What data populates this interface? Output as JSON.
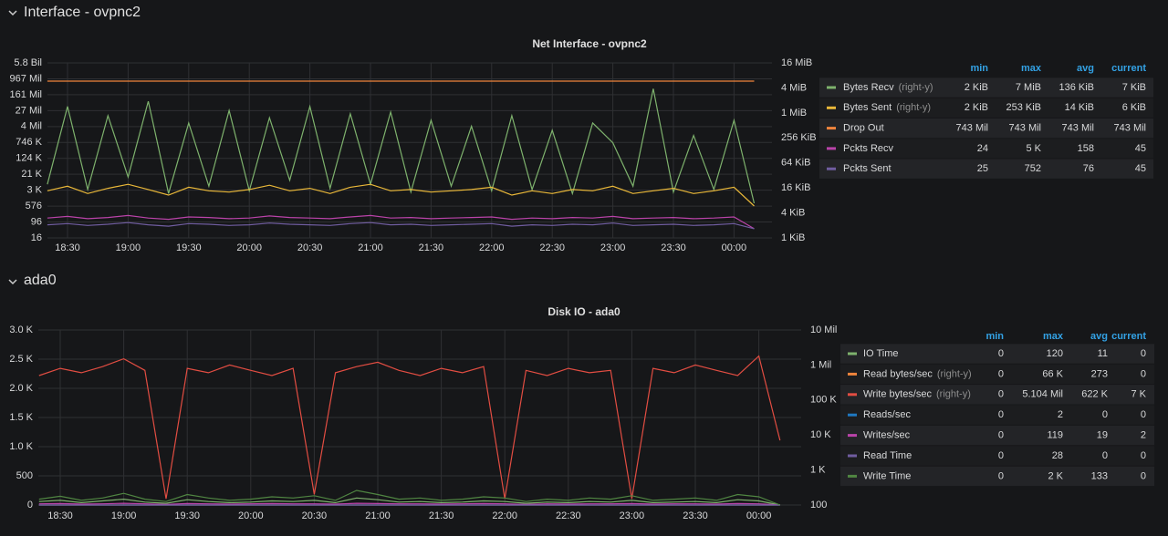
{
  "sections": [
    "Interface - ovpnc2",
    "ada0"
  ],
  "chart_data": [
    {
      "type": "line",
      "title": "Net Interface - ovpnc2",
      "grid": true,
      "legend": "right",
      "ylog": true,
      "y2log": true,
      "y2_note": "(right-y)",
      "stat_headers": [
        "min",
        "max",
        "avg",
        "current"
      ],
      "x": [
        null,
        "18:30",
        null,
        null,
        "19:00",
        null,
        null,
        "19:30",
        null,
        null,
        "20:00",
        null,
        null,
        "20:30",
        null,
        null,
        "21:00",
        null,
        null,
        "21:30",
        null,
        null,
        "22:00",
        null,
        null,
        "22:30",
        null,
        null,
        "23:00",
        null,
        null,
        "23:30",
        null,
        null,
        "00:00",
        null
      ],
      "ylim": [
        16,
        5804752896
      ],
      "yticks": [
        16,
        96,
        576,
        {
          "value": 3456,
          "label": "3 K"
        },
        {
          "value": 20736,
          "label": "21 K"
        },
        {
          "value": 124416,
          "label": "124 K"
        },
        {
          "value": 746496,
          "label": "746 K"
        },
        {
          "value": 4478976,
          "label": "4 Mil"
        },
        {
          "value": 26873856,
          "label": "27 Mil"
        },
        {
          "value": 161243136,
          "label": "161 Mil"
        },
        {
          "value": 967458816,
          "label": "967 Mil"
        },
        {
          "value": 5804752896,
          "label": "5.8 Bil"
        }
      ],
      "y2lim": [
        1024,
        16777216
      ],
      "y2ticks": [
        {
          "value": 1024,
          "label": "1 KiB"
        },
        {
          "value": 4096,
          "label": "4 KiB"
        },
        {
          "value": 16384,
          "label": "16 KiB"
        },
        {
          "value": 65536,
          "label": "64 KiB"
        },
        {
          "value": 262144,
          "label": "256 KiB"
        },
        {
          "value": 1048576,
          "label": "1 MiB"
        },
        {
          "value": 4194304,
          "label": "4 MiB"
        },
        {
          "value": 16777216,
          "label": "16 MiB"
        }
      ],
      "series": [
        {
          "name": "Bytes Recv",
          "color": "#7eb26d",
          "axis": "y2",
          "stats": [
            "2 KiB",
            "7 MiB",
            "136 KiB",
            "7 KiB"
          ],
          "values": [
            20000,
            1500000,
            15000,
            900000,
            30000,
            2000000,
            12000,
            600000,
            18000,
            1200000,
            14000,
            800000,
            25000,
            1500000,
            16000,
            1000000,
            20000,
            1100000,
            13000,
            700000,
            18000,
            500000,
            14000,
            900000,
            15000,
            400000,
            12000,
            600000,
            200000,
            18000,
            4000000,
            13000,
            300000,
            15000,
            700000,
            7000
          ]
        },
        {
          "name": "Bytes Sent",
          "color": "#eab839",
          "axis": "y2",
          "stats": [
            "2 KiB",
            "253 KiB",
            "14 KiB",
            "6 KiB"
          ],
          "values": [
            14000,
            18000,
            12000,
            16000,
            20000,
            15000,
            11000,
            17000,
            14000,
            13000,
            15000,
            19000,
            14000,
            16000,
            12000,
            17000,
            20000,
            14000,
            15000,
            13000,
            14000,
            15000,
            17000,
            11000,
            14000,
            12000,
            15000,
            14000,
            18000,
            12000,
            14000,
            16000,
            12000,
            14000,
            17000,
            6000
          ]
        },
        {
          "name": "Drop Out",
          "color": "#ef843c",
          "stats": [
            "743 Mil",
            "743 Mil",
            "743 Mil",
            "743 Mil"
          ],
          "values": [
            743000000,
            743000000,
            743000000,
            743000000,
            743000000,
            743000000,
            743000000,
            743000000,
            743000000,
            743000000,
            743000000,
            743000000,
            743000000,
            743000000,
            743000000,
            743000000,
            743000000,
            743000000,
            743000000,
            743000000,
            743000000,
            743000000,
            743000000,
            743000000,
            743000000,
            743000000,
            743000000,
            743000000,
            743000000,
            743000000,
            743000000,
            743000000,
            743000000,
            743000000,
            743000000,
            743000000
          ]
        },
        {
          "name": "Pckts Recv",
          "color": "#ba43a9",
          "stats": [
            "24",
            "5 K",
            "158",
            "45"
          ],
          "values": [
            150,
            180,
            140,
            160,
            200,
            150,
            130,
            170,
            160,
            140,
            150,
            190,
            160,
            150,
            140,
            170,
            200,
            150,
            160,
            140,
            150,
            160,
            170,
            130,
            150,
            140,
            160,
            150,
            180,
            140,
            150,
            160,
            140,
            150,
            170,
            45
          ]
        },
        {
          "name": "Pckts Sent",
          "color": "#705da0",
          "stats": [
            "25",
            "752",
            "76",
            "45"
          ],
          "values": [
            70,
            80,
            65,
            75,
            90,
            70,
            60,
            80,
            75,
            65,
            70,
            85,
            75,
            70,
            65,
            80,
            90,
            70,
            75,
            65,
            70,
            75,
            80,
            60,
            70,
            65,
            75,
            70,
            85,
            65,
            70,
            75,
            65,
            70,
            80,
            45
          ]
        }
      ]
    },
    {
      "type": "line",
      "title": "Disk IO - ada0",
      "grid": true,
      "legend": "right",
      "ylog": false,
      "y2log": true,
      "y2_note": "(right-y)",
      "stat_headers": [
        "min",
        "max",
        "avg",
        "current"
      ],
      "x": [
        null,
        "18:30",
        null,
        null,
        "19:00",
        null,
        null,
        "19:30",
        null,
        null,
        "20:00",
        null,
        null,
        "20:30",
        null,
        null,
        "21:00",
        null,
        null,
        "21:30",
        null,
        null,
        "22:00",
        null,
        null,
        "22:30",
        null,
        null,
        "23:00",
        null,
        null,
        "23:30",
        null,
        null,
        "00:00",
        null
      ],
      "ylim": [
        0,
        3000
      ],
      "yticks": [
        0,
        500,
        {
          "value": 1000,
          "label": "1.0 K"
        },
        {
          "value": 1500,
          "label": "1.5 K"
        },
        {
          "value": 2000,
          "label": "2.0 K"
        },
        {
          "value": 2500,
          "label": "2.5 K"
        },
        {
          "value": 3000,
          "label": "3.0 K"
        }
      ],
      "y2lim": [
        100,
        10000000
      ],
      "y2ticks": [
        100,
        {
          "value": 1000,
          "label": "1 K"
        },
        {
          "value": 10000,
          "label": "10 K"
        },
        {
          "value": 100000,
          "label": "100 K"
        },
        {
          "value": 1000000,
          "label": "1 Mil"
        },
        {
          "value": 10000000,
          "label": "10 Mil"
        }
      ],
      "series": [
        {
          "name": "IO Time",
          "color": "#7eb26d",
          "stats": [
            "0",
            "120",
            "11",
            "0"
          ],
          "values": [
            60,
            80,
            40,
            70,
            100,
            50,
            30,
            90,
            60,
            40,
            50,
            70,
            60,
            80,
            40,
            120,
            90,
            50,
            60,
            40,
            50,
            70,
            60,
            30,
            50,
            40,
            60,
            50,
            80,
            40,
            50,
            60,
            40,
            90,
            70,
            0
          ]
        },
        {
          "name": "Read bytes/sec",
          "color": "#ef843c",
          "axis": "y2",
          "stats": [
            "0",
            "66 K",
            "273",
            "0"
          ],
          "values": [
            100,
            100,
            100,
            100,
            100,
            100,
            100,
            100,
            100,
            100,
            100,
            100,
            100,
            100,
            100,
            100,
            100,
            100,
            100,
            100,
            100,
            100,
            100,
            100,
            100,
            100,
            100,
            100,
            100,
            100,
            100,
            100,
            100,
            100,
            100,
            100
          ]
        },
        {
          "name": "Write bytes/sec",
          "color": "#e24d42",
          "axis": "y2",
          "stats": [
            "0",
            "5.104 Mil",
            "622 K",
            "7 K"
          ],
          "values": [
            500000,
            800000,
            600000,
            900000,
            1500000,
            700000,
            150,
            800000,
            600000,
            1000000,
            700000,
            500000,
            800000,
            200,
            600000,
            900000,
            1200000,
            700000,
            500000,
            800000,
            600000,
            900000,
            150,
            700000,
            500000,
            800000,
            600000,
            700000,
            150,
            800000,
            600000,
            1000000,
            700000,
            500000,
            1800000,
            7000
          ]
        },
        {
          "name": "Reads/sec",
          "color": "#1f78c1",
          "stats": [
            "0",
            "2",
            "0",
            "0"
          ],
          "values": [
            0,
            0,
            0,
            0,
            0,
            0,
            0,
            0,
            0,
            0,
            0,
            0,
            0,
            0,
            0,
            0,
            0,
            0,
            0,
            0,
            0,
            0,
            0,
            0,
            0,
            0,
            0,
            0,
            0,
            0,
            0,
            0,
            0,
            0,
            0,
            0
          ]
        },
        {
          "name": "Writes/sec",
          "color": "#ba43a9",
          "stats": [
            "0",
            "119",
            "19",
            "2"
          ],
          "values": [
            20,
            25,
            15,
            20,
            30,
            20,
            10,
            25,
            20,
            15,
            20,
            25,
            20,
            20,
            15,
            30,
            25,
            20,
            20,
            15,
            20,
            25,
            20,
            10,
            20,
            15,
            20,
            20,
            25,
            15,
            20,
            20,
            15,
            25,
            20,
            2
          ]
        },
        {
          "name": "Read Time",
          "color": "#705da0",
          "stats": [
            "0",
            "28",
            "0",
            "0"
          ],
          "values": [
            0,
            0,
            0,
            0,
            0,
            0,
            0,
            0,
            0,
            0,
            0,
            0,
            0,
            0,
            0,
            0,
            0,
            0,
            0,
            0,
            0,
            0,
            0,
            0,
            0,
            0,
            0,
            0,
            0,
            0,
            0,
            0,
            0,
            0,
            0,
            0
          ]
        },
        {
          "name": "Write Time",
          "color": "#508642",
          "stats": [
            "0",
            "2 K",
            "133",
            "0"
          ],
          "values": [
            100,
            150,
            80,
            120,
            200,
            100,
            60,
            180,
            120,
            80,
            100,
            140,
            120,
            160,
            80,
            250,
            180,
            100,
            120,
            80,
            100,
            140,
            120,
            60,
            100,
            80,
            120,
            100,
            160,
            80,
            100,
            120,
            80,
            180,
            140,
            0
          ]
        }
      ]
    }
  ]
}
